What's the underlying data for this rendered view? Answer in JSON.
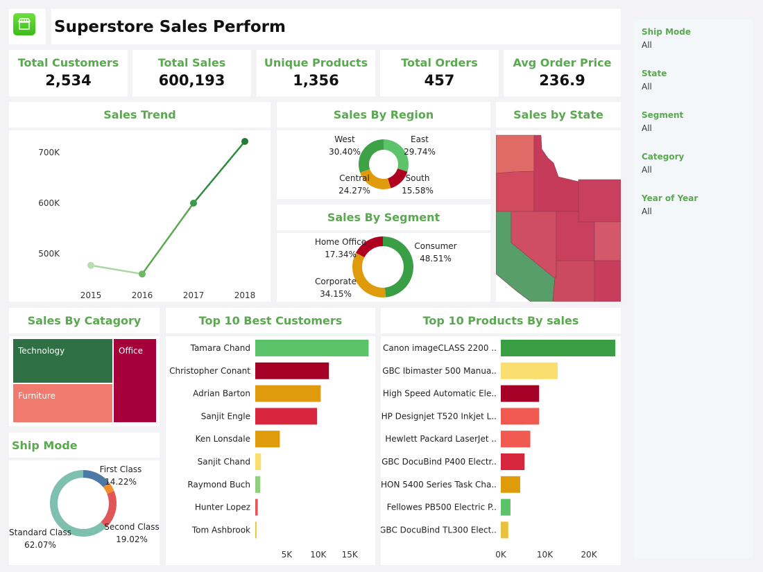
{
  "header": {
    "title": "Superstore Sales Perform",
    "logo_icon": "storefront-icon"
  },
  "kpis": [
    {
      "label": "Total Customers",
      "value": "2,534"
    },
    {
      "label": "Total Sales",
      "value": "600,193"
    },
    {
      "label": "Unique Products",
      "value": "1,356"
    },
    {
      "label": "Total Orders",
      "value": "457"
    },
    {
      "label": "Avg Order Price",
      "value": "236.9"
    }
  ],
  "titles": {
    "trend": "Sales Trend",
    "region": "Sales By Region",
    "segment": "Sales By Segment",
    "state": "Sales by State",
    "category": "Sales By Catagory",
    "shipmode": "Ship Mode",
    "customers": "Top 10 Best Customers",
    "products": "Top 10 Products By sales"
  },
  "filters": [
    {
      "label": "Ship Mode",
      "value": "All"
    },
    {
      "label": "State",
      "value": "All"
    },
    {
      "label": "Segment",
      "value": "All"
    },
    {
      "label": "Category",
      "value": "All"
    },
    {
      "label": "Year of Year",
      "value": "All"
    }
  ],
  "colors": {
    "accent": "#5aa84f"
  },
  "chart_data": [
    {
      "type": "line",
      "title": "Sales Trend",
      "x": [
        "2015",
        "2016",
        "2017",
        "2018"
      ],
      "values": [
        477000,
        460000,
        600000,
        722000
      ],
      "yticks": [
        "500K",
        "600K",
        "700K"
      ],
      "ytick_values": [
        500000,
        600000,
        700000
      ],
      "ylim": [
        440000,
        740000
      ]
    },
    {
      "type": "pie",
      "title": "Sales By Region",
      "slices": [
        {
          "label": "East",
          "pct": "29.74%",
          "value": 29.74,
          "color": "#5cc36a"
        },
        {
          "label": "South",
          "pct": "15.58%",
          "value": 15.58,
          "color": "#b0001f"
        },
        {
          "label": "Central",
          "pct": "24.27%",
          "value": 24.27,
          "color": "#e09b0c"
        },
        {
          "label": "West",
          "pct": "30.40%",
          "value": 30.4,
          "color": "#3ea047"
        }
      ]
    },
    {
      "type": "pie",
      "title": "Sales By Segment",
      "slices": [
        {
          "label": "Consumer",
          "pct": "48.51%",
          "value": 48.51,
          "color": "#3a9e45"
        },
        {
          "label": "Corporate",
          "pct": "34.15%",
          "value": 34.15,
          "color": "#e09b0c"
        },
        {
          "label": "Home Office",
          "pct": "17.34%",
          "value": 17.34,
          "color": "#b0001f"
        }
      ]
    },
    {
      "type": "pie",
      "title": "Ship Mode",
      "slices": [
        {
          "label": "First Class",
          "pct": "14.22%",
          "value": 14.22,
          "color": "#4e79a7"
        },
        {
          "label": "",
          "pct": "",
          "value": 4.69,
          "color": "#f28e2b"
        },
        {
          "label": "Second Class",
          "pct": "19.02%",
          "value": 19.02,
          "color": "#e15759"
        },
        {
          "label": "Standard Class",
          "pct": "62.07%",
          "value": 62.07,
          "color": "#7fbfae"
        }
      ]
    },
    {
      "type": "treemap",
      "title": "Sales By Catagory",
      "items": [
        {
          "label": "Technology",
          "color": "#2e7043"
        },
        {
          "label": "Furniture",
          "color": "#f07a6e"
        },
        {
          "label": "Office",
          "color": "#a5003a"
        }
      ]
    },
    {
      "type": "bar",
      "title": "Top 10 Best Customers",
      "categories": [
        "Tamara Chand",
        "Christopher Conant",
        "Adrian Barton",
        "Sanjit Engle",
        "Ken Lonsdale",
        "Sanjit Chand",
        "Raymond Buch",
        "Hunter Lopez",
        "Tom Ashbrook"
      ],
      "values": [
        18000,
        11700,
        10400,
        9800,
        3900,
        900,
        800,
        400,
        200
      ],
      "colors": [
        "#5cc36a",
        "#a50026",
        "#e09b0c",
        "#d7263d",
        "#e09b0c",
        "#fadf6e",
        "#8fd07f",
        "#e15759",
        "#e8c23a"
      ],
      "xticks": [
        "5K",
        "10K",
        "15K"
      ],
      "xtick_values": [
        5000,
        10000,
        15000
      ],
      "xlim": [
        0,
        18000
      ]
    },
    {
      "type": "bar",
      "title": "Top 10 Products By sales",
      "categories": [
        "Canon imageCLASS 2200 ..",
        "GBC Ibimaster 500 Manua..",
        "High Speed Automatic Ele..",
        "HP Designjet T520 Inkjet L..",
        "Hewlett Packard LaserJet ..",
        "GBC DocuBind P400 Electr..",
        "HON 5400 Series Task Cha..",
        "Fellowes PB500 Electric P..",
        "GBC DocuBind TL300 Elect.."
      ],
      "values": [
        26000,
        12900,
        8700,
        8700,
        6700,
        5400,
        4400,
        2200,
        1700
      ],
      "colors": [
        "#3a9e45",
        "#fadf6e",
        "#a50026",
        "#f05a50",
        "#f05a50",
        "#d7263d",
        "#e09b0c",
        "#5cc36a",
        "#e8c23a"
      ],
      "xticks": [
        "0K",
        "10K",
        "20K"
      ],
      "xtick_values": [
        0,
        10000,
        20000
      ],
      "xlim": [
        0,
        26000
      ]
    }
  ]
}
